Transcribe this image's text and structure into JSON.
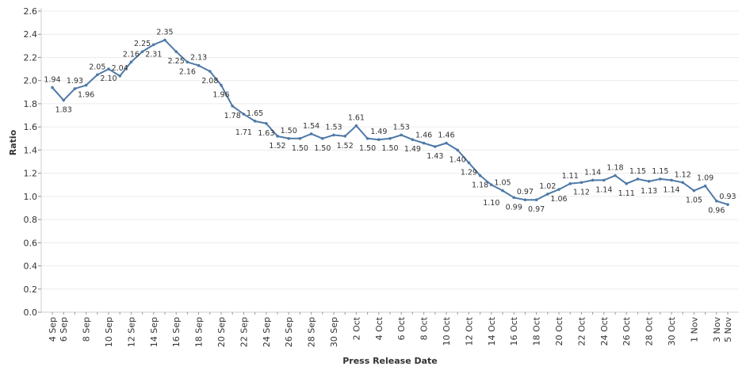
{
  "chart_data": {
    "type": "line",
    "title": "",
    "xlabel": "Press Release Date",
    "ylabel": "Ratio",
    "ylim": [
      0,
      2.6
    ],
    "yticks": [
      "0.0",
      "0.2",
      "0.4",
      "0.6",
      "0.8",
      "1.0",
      "1.2",
      "1.4",
      "1.6",
      "1.8",
      "2.0",
      "2.2",
      "2.4",
      "2.6"
    ],
    "grid": true,
    "line_color": "#4e79a7",
    "x": [
      "4 Sep",
      "6 Sep",
      "7 Sep",
      "8 Sep",
      "9 Sep",
      "10 Sep",
      "11 Sep",
      "12 Sep",
      "13 Sep",
      "14 Sep",
      "15 Sep",
      "16 Sep",
      "17 Sep",
      "18 Sep",
      "19 Sep",
      "20 Sep",
      "21 Sep",
      "22 Sep",
      "23 Sep",
      "24 Sep",
      "25 Sep",
      "26 Sep",
      "27 Sep",
      "28 Sep",
      "29 Sep",
      "30 Sep",
      "1 Oct",
      "2 Oct",
      "3 Oct",
      "4 Oct",
      "5 Oct",
      "6 Oct",
      "7 Oct",
      "8 Oct",
      "9 Oct",
      "10 Oct",
      "11 Oct",
      "12 Oct",
      "13 Oct",
      "14 Oct",
      "15 Oct",
      "16 Oct",
      "17 Oct",
      "18 Oct",
      "19 Oct",
      "20 Oct",
      "21 Oct",
      "22 Oct",
      "23 Oct",
      "24 Oct",
      "25 Oct",
      "26 Oct",
      "27 Oct",
      "28 Oct",
      "29 Oct",
      "30 Oct",
      "31 Oct",
      "1 Nov",
      "2 Nov",
      "3 Nov",
      "5 Nov"
    ],
    "xtick_labels": [
      "4 Sep",
      "6 Sep",
      "8 Sep",
      "10 Sep",
      "12 Sep",
      "14 Sep",
      "16 Sep",
      "18 Sep",
      "20 Sep",
      "22 Sep",
      "24 Sep",
      "26 Sep",
      "28 Sep",
      "30 Sep",
      "2 Oct",
      "4 Oct",
      "6 Oct",
      "8 Oct",
      "10 Oct",
      "12 Oct",
      "14 Oct",
      "16 Oct",
      "18 Oct",
      "20 Oct",
      "22 Oct",
      "24 Oct",
      "26 Oct",
      "28 Oct",
      "30 Oct",
      "1 Nov",
      "3 Nov",
      "5 Nov"
    ],
    "values": [
      1.94,
      1.83,
      1.93,
      1.96,
      2.05,
      2.1,
      2.04,
      2.16,
      2.25,
      2.31,
      2.35,
      2.25,
      2.16,
      2.13,
      2.08,
      1.96,
      1.78,
      1.71,
      1.65,
      1.63,
      1.52,
      1.5,
      1.5,
      1.54,
      1.5,
      1.53,
      1.52,
      1.61,
      1.5,
      1.49,
      1.5,
      1.53,
      1.49,
      1.46,
      1.43,
      1.46,
      1.4,
      1.29,
      1.18,
      1.1,
      1.05,
      0.99,
      0.97,
      0.97,
      1.02,
      1.06,
      1.11,
      1.12,
      1.14,
      1.14,
      1.18,
      1.11,
      1.15,
      1.13,
      1.15,
      1.14,
      1.12,
      1.05,
      1.09,
      0.96,
      0.93
    ]
  }
}
